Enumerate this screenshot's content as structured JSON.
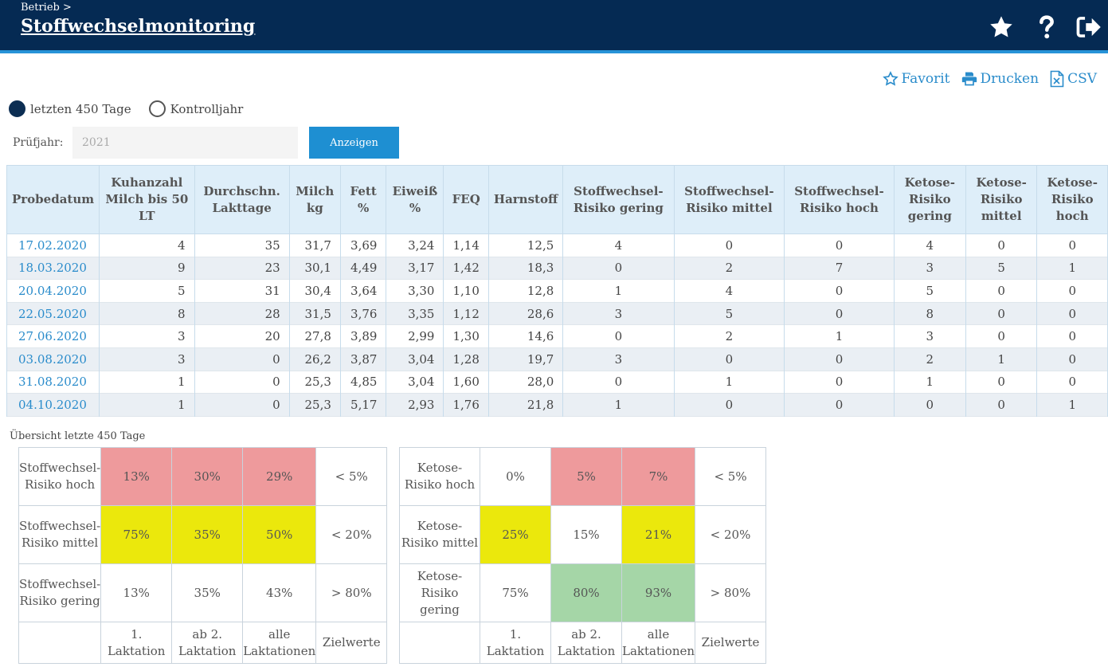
{
  "header": {
    "breadcrumb": "Betrieb >",
    "title": "Stoffwechselmonitoring",
    "icons": [
      "star-icon",
      "help-icon",
      "logout-icon"
    ]
  },
  "actions": {
    "favorite": "Favorit",
    "print": "Drucken",
    "csv": "CSV"
  },
  "filter": {
    "option_days": "letzten 450 Tage",
    "option_year": "Kontrolljahr",
    "selected": "letzten 450 Tage",
    "year_label": "Prüfjahr:",
    "year_placeholder": "2021",
    "show_button": "Anzeigen"
  },
  "table": {
    "headers": [
      "Probedatum",
      "Kuhanzahl Milch bis 50 LT",
      "Durchschn. Lakttage",
      "Milch kg",
      "Fett %",
      "Eiweiß %",
      "FEQ",
      "Harnstoff",
      "Stoffwechsel-Risiko gering",
      "Stoffwechsel-Risiko mittel",
      "Stoffwechsel-Risiko hoch",
      "Ketose-Risiko gering",
      "Ketose-Risiko mittel",
      "Ketose-Risiko hoch"
    ],
    "rows": [
      [
        "17.02.2020",
        "4",
        "35",
        "31,7",
        "3,69",
        "3,24",
        "1,14",
        "12,5",
        "4",
        "0",
        "0",
        "4",
        "0",
        "0"
      ],
      [
        "18.03.2020",
        "9",
        "23",
        "30,1",
        "4,49",
        "3,17",
        "1,42",
        "18,3",
        "0",
        "2",
        "7",
        "3",
        "5",
        "1"
      ],
      [
        "20.04.2020",
        "5",
        "31",
        "30,4",
        "3,64",
        "3,30",
        "1,10",
        "12,8",
        "1",
        "4",
        "0",
        "5",
        "0",
        "0"
      ],
      [
        "22.05.2020",
        "8",
        "28",
        "31,5",
        "3,76",
        "3,35",
        "1,12",
        "28,6",
        "3",
        "5",
        "0",
        "8",
        "0",
        "0"
      ],
      [
        "27.06.2020",
        "3",
        "20",
        "27,8",
        "3,89",
        "2,99",
        "1,30",
        "14,6",
        "0",
        "2",
        "1",
        "3",
        "0",
        "0"
      ],
      [
        "03.08.2020",
        "3",
        "0",
        "26,2",
        "3,87",
        "3,04",
        "1,28",
        "19,7",
        "3",
        "0",
        "0",
        "2",
        "1",
        "0"
      ],
      [
        "31.08.2020",
        "1",
        "0",
        "25,3",
        "4,85",
        "3,04",
        "1,60",
        "28,0",
        "0",
        "1",
        "0",
        "1",
        "0",
        "0"
      ],
      [
        "04.10.2020",
        "1",
        "0",
        "25,3",
        "5,17",
        "2,93",
        "1,76",
        "21,8",
        "1",
        "0",
        "0",
        "0",
        "0",
        "1"
      ]
    ]
  },
  "overview": {
    "caption": "Übersicht letzte 450 Tage",
    "columns": [
      "1. Laktation",
      "ab 2. Laktation",
      "alle Laktationen",
      "Zielwerte"
    ],
    "colors": {
      "red": "#ee9a9c",
      "yellow": "#ebe80c",
      "green": "#a5d6a7"
    },
    "stoffwechsel": [
      {
        "label": "Stoffwechsel-Risiko hoch",
        "values": [
          "13%",
          "30%",
          "29%"
        ],
        "target": "< 5%",
        "status": [
          "red",
          "red",
          "red"
        ]
      },
      {
        "label": "Stoffwechsel-Risiko mittel",
        "values": [
          "75%",
          "35%",
          "50%"
        ],
        "target": "< 20%",
        "status": [
          "yellow",
          "yellow",
          "yellow"
        ]
      },
      {
        "label": "Stoffwechsel-Risiko gering",
        "values": [
          "13%",
          "35%",
          "43%"
        ],
        "target": "> 80%",
        "status": [
          "",
          "",
          ""
        ]
      }
    ],
    "ketose": [
      {
        "label": "Ketose-Risiko hoch",
        "values": [
          "0%",
          "5%",
          "7%"
        ],
        "target": "< 5%",
        "status": [
          "",
          "red",
          "red"
        ]
      },
      {
        "label": "Ketose-Risiko mittel",
        "values": [
          "25%",
          "15%",
          "21%"
        ],
        "target": "< 20%",
        "status": [
          "yellow",
          "",
          "yellow"
        ]
      },
      {
        "label": "Ketose-Risiko gering",
        "values": [
          "75%",
          "80%",
          "93%"
        ],
        "target": "> 80%",
        "status": [
          "",
          "green",
          "green"
        ]
      }
    ]
  }
}
